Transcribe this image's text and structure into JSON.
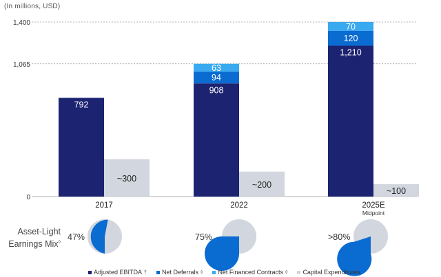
{
  "chart_data": {
    "type": "bar",
    "subtitle": "(In millions, USD)",
    "ylim": [
      0,
      1400
    ],
    "yticks": [
      0,
      1065,
      1400
    ],
    "ytick_labels": [
      "0",
      "1,065",
      "1,400"
    ],
    "categories": [
      "2017",
      "2022",
      "2025E"
    ],
    "category_sublabels": [
      "",
      "",
      "Midpoint"
    ],
    "stacked_series": [
      {
        "name": "Adjusted EBITDA",
        "legend_suffix": "†",
        "color": "#1c2371",
        "values": [
          792,
          908,
          1210
        ],
        "labels": [
          "792",
          "908",
          "1,210"
        ]
      },
      {
        "name": "Net Deferrals",
        "legend_suffix": "◊",
        "color": "#0a6bd1",
        "values": [
          0,
          94,
          120
        ],
        "labels": [
          "",
          "94",
          "120"
        ]
      },
      {
        "name": "Net Financed Contracts",
        "legend_suffix": "◊",
        "color": "#39aaf0",
        "values": [
          0,
          63,
          70
        ],
        "labels": [
          "",
          "63",
          "70"
        ]
      }
    ],
    "side_series": {
      "name": "Capital Expenditures",
      "legend_suffix": "",
      "color": "#d2d6de",
      "values": [
        300,
        200,
        100
      ],
      "labels": [
        "~300",
        "~200",
        "~100"
      ]
    },
    "earnings_mix": {
      "label_line1": "Asset-Light",
      "label_line2": "Earnings Mix",
      "label_suffix": "◊",
      "values_pct": [
        47,
        75,
        80
      ],
      "labels": [
        "47%",
        "75%",
        ">80%"
      ],
      "fill_color": "#0a6bd1",
      "rest_color": "#d2d6de"
    }
  }
}
